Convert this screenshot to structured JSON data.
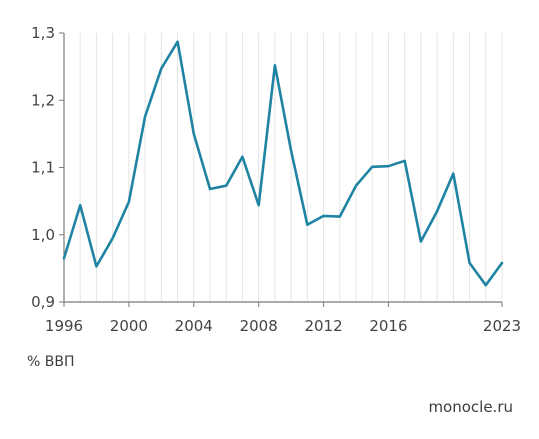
{
  "chart_data": {
    "type": "line",
    "x": [
      1996,
      1997,
      1998,
      1999,
      2000,
      2001,
      2002,
      2003,
      2004,
      2005,
      2006,
      2007,
      2008,
      2009,
      2010,
      2011,
      2012,
      2013,
      2014,
      2015,
      2016,
      2017,
      2018,
      2019,
      2020,
      2021,
      2022,
      2023
    ],
    "series": [
      {
        "values": [
          0.965,
          1.044,
          0.953,
          0.995,
          1.049,
          1.176,
          1.247,
          1.287,
          1.15,
          1.068,
          1.073,
          1.116,
          1.044,
          1.252,
          1.125,
          1.015,
          1.028,
          1.027,
          1.073,
          1.101,
          1.102,
          1.11,
          0.99,
          1.035,
          1.091,
          0.958,
          0.925,
          0.958
        ],
        "color": "#1f84a3"
      }
    ],
    "x_tick_labels": [
      "1996",
      "2000",
      "2004",
      "2008",
      "2012",
      "2016",
      "2023"
    ],
    "y_tick_labels": [
      "0,9",
      "1,0",
      "1,1",
      "1,2",
      "1,3"
    ],
    "xlim": [
      1996,
      2023
    ],
    "ylim": [
      0.9,
      1.3
    ],
    "grid": "vertical",
    "unit_label": "% ВВП",
    "source": "monocle.ru"
  }
}
